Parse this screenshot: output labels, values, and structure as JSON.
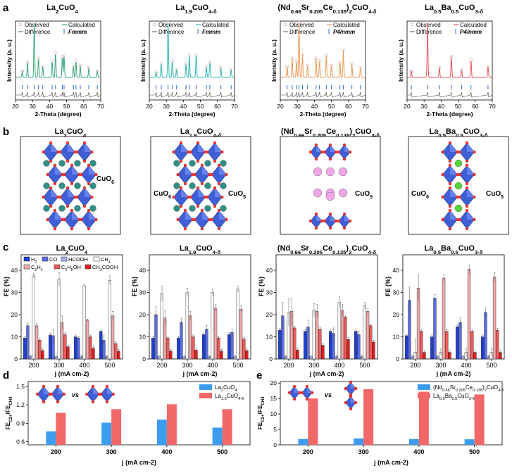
{
  "panel_labels": [
    "a",
    "b",
    "c",
    "d",
    "e"
  ],
  "materials": [
    {
      "base": "La",
      "sub1": "2",
      "mid": "CuO",
      "sub2": "4"
    },
    {
      "base": "La",
      "sub1": "1.9",
      "mid": "CuO",
      "sub2": "4-δ"
    },
    {
      "base": "(Nd",
      "sub1": "0.66",
      "mid": "Sr",
      "sub2": "0.205",
      "mid2": "Ce",
      "sub3": "0.135",
      "mid3": ")",
      "sub4": "2",
      "mid4": "CuO",
      "sub5": "4-δ"
    },
    {
      "base": "La",
      "sub1": "0.5",
      "mid": "Ba",
      "sub2": "0.5",
      "mid2": "CuO",
      "sub3": "3-δ"
    }
  ],
  "xrd": {
    "xlabel": "2-Theta (degree)",
    "ylabel": "Intensity (a. u.)",
    "xticks": [
      "20",
      "30",
      "40",
      "50",
      "60",
      "70"
    ],
    "legend": {
      "observed": "Observed",
      "calculated": "Calculated",
      "difference": "Difference"
    },
    "space_groups": [
      "Fmmm",
      "Fmmm",
      "P4/nmm",
      "P4/nmm"
    ],
    "colors": [
      "#3aa67a",
      "#2fb3b5",
      "#e89a55",
      "#e0565a"
    ],
    "peaks": [
      [
        [
          24,
          0.12
        ],
        [
          27,
          0.28
        ],
        [
          31,
          1.0
        ],
        [
          33.5,
          0.35
        ],
        [
          36,
          0.2
        ],
        [
          41.5,
          0.3
        ],
        [
          43.5,
          0.45
        ],
        [
          47.5,
          0.38
        ],
        [
          48.5,
          0.4
        ],
        [
          54,
          0.2
        ],
        [
          55.5,
          0.3
        ],
        [
          58,
          0.22
        ],
        [
          63,
          0.18
        ],
        [
          68,
          0.12
        ]
      ],
      [
        [
          24,
          0.1
        ],
        [
          27,
          0.25
        ],
        [
          31,
          1.0
        ],
        [
          33.5,
          0.3
        ],
        [
          36,
          0.15
        ],
        [
          41.5,
          0.25
        ],
        [
          43.5,
          0.4
        ],
        [
          47.5,
          0.42
        ],
        [
          53.5,
          0.2
        ],
        [
          55.5,
          0.28
        ],
        [
          62,
          0.18
        ],
        [
          68,
          0.15
        ]
      ],
      [
        [
          24,
          0.2
        ],
        [
          27,
          0.35
        ],
        [
          29.5,
          0.3
        ],
        [
          31,
          1.0
        ],
        [
          33,
          0.42
        ],
        [
          36,
          0.22
        ],
        [
          41,
          0.35
        ],
        [
          43,
          0.3
        ],
        [
          47,
          0.4
        ],
        [
          50,
          0.22
        ],
        [
          55,
          0.28
        ],
        [
          57,
          0.5
        ],
        [
          62,
          0.25
        ],
        [
          67,
          0.18
        ]
      ],
      [
        [
          22.5,
          0.12
        ],
        [
          32,
          1.0
        ],
        [
          39,
          0.18
        ],
        [
          46,
          0.38
        ],
        [
          52,
          0.14
        ],
        [
          57.5,
          0.32
        ],
        [
          67.5,
          0.2
        ]
      ]
    ]
  },
  "structures": {
    "cuo6": "CuO",
    "cuo6_sub": "6",
    "cuo5": "CuO",
    "cuo5_sub": "5"
  },
  "chart_data": [
    {
      "type": "bar",
      "panel": "c",
      "title": "La2CuO4",
      "xlabel": "j (mA cm-2)",
      "ylabel": "FE (%)",
      "categories": [
        "200",
        "300",
        "400",
        "500"
      ],
      "ylim": [
        0,
        47
      ],
      "yticks": [
        0,
        10,
        20,
        30,
        40
      ],
      "series": [
        {
          "name": "H2",
          "values": [
            9.5,
            10.8,
            10,
            12.5
          ]
        },
        {
          "name": "CO",
          "values": [
            15,
            10.5,
            9.5,
            8.5
          ]
        },
        {
          "name": "HCOOH",
          "values": [
            1.0,
            1.0,
            1.0,
            1.0
          ]
        },
        {
          "name": "CH4",
          "values": [
            37.5,
            36,
            33,
            35.5
          ]
        },
        {
          "name": "C2H4",
          "values": [
            15,
            16.5,
            17.5,
            19.5
          ]
        },
        {
          "name": "C2H5OH",
          "values": [
            8.5,
            11,
            10,
            7
          ]
        },
        {
          "name": "CH3COOH",
          "values": [
            3.8,
            5.5,
            4.8,
            3.5
          ]
        }
      ],
      "errors": [
        1.0,
        3.0,
        0.5,
        2.0
      ]
    },
    {
      "type": "bar",
      "panel": "c",
      "title": "La1.9CuO4-δ",
      "xlabel": "j (mA cm-2)",
      "ylabel": "FE (%)",
      "categories": [
        "200",
        "300",
        "400",
        "500"
      ],
      "ylim": [
        0,
        47
      ],
      "yticks": [
        0,
        10,
        20,
        30,
        40
      ],
      "series": [
        {
          "name": "H2",
          "values": [
            9.5,
            9.5,
            11,
            11
          ]
        },
        {
          "name": "CO",
          "values": [
            20,
            16.5,
            13.5,
            12
          ]
        },
        {
          "name": "HCOOH",
          "values": [
            1.0,
            1.0,
            1.0,
            1.0
          ]
        },
        {
          "name": "CH4",
          "values": [
            29.5,
            30,
            30,
            31.5
          ]
        },
        {
          "name": "C2H4",
          "values": [
            18.5,
            19.5,
            23,
            22.5
          ]
        },
        {
          "name": "C2H5OH",
          "values": [
            9.5,
            10,
            9.5,
            9
          ]
        },
        {
          "name": "CH3COOH",
          "values": [
            3.5,
            4,
            3.5,
            3.8
          ]
        }
      ],
      "errors": [
        3.5,
        2.0,
        1.5,
        1.5
      ]
    },
    {
      "type": "bar",
      "panel": "c",
      "title": "(Nd0.66Sr0.205Ce0.135)2CuO4-δ",
      "xlabel": "j (mA cm-2)",
      "ylabel": "FE (%)",
      "categories": [
        "200",
        "300",
        "400",
        "500"
      ],
      "ylim": [
        0,
        47
      ],
      "yticks": [
        0,
        10,
        20,
        30,
        40
      ],
      "series": [
        {
          "name": "H2",
          "values": [
            13,
            12.5,
            12.5,
            12.5
          ]
        },
        {
          "name": "CO",
          "values": [
            19.5,
            14.5,
            11.5,
            11
          ]
        },
        {
          "name": "HCOOH",
          "values": [
            1.0,
            1.0,
            1.0,
            1.0
          ]
        },
        {
          "name": "CH4",
          "values": [
            21,
            22,
            25.5,
            24
          ]
        },
        {
          "name": "C2H4",
          "values": [
            21.5,
            21.5,
            22,
            21.5
          ]
        },
        {
          "name": "C2H5OH",
          "values": [
            14,
            13.5,
            19,
            15
          ]
        },
        {
          "name": "CH3COOH",
          "values": [
            4,
            6.2,
            8.8,
            7.6
          ]
        }
      ],
      "errors": [
        6.0,
        3.0,
        2.5,
        1.5
      ]
    },
    {
      "type": "bar",
      "panel": "c",
      "title": "La0.5Ba0.5CuO3-δ",
      "xlabel": "j (mA cm-2)",
      "ylabel": "FE (%)",
      "categories": [
        "200",
        "300",
        "400",
        "500"
      ],
      "ylim": [
        0,
        47
      ],
      "yticks": [
        0,
        10,
        20,
        30,
        40
      ],
      "series": [
        {
          "name": "H2",
          "values": [
            10.5,
            10,
            14.5,
            10
          ]
        },
        {
          "name": "CO",
          "values": [
            26.5,
            27.5,
            16.5,
            21
          ]
        },
        {
          "name": "HCOOH",
          "values": [
            1.0,
            1.0,
            1.0,
            1.0
          ]
        },
        {
          "name": "CH4",
          "values": [
            3,
            3,
            3,
            3
          ]
        },
        {
          "name": "C2H4",
          "values": [
            32,
            36.5,
            40.5,
            37
          ]
        },
        {
          "name": "C2H5OH",
          "values": [
            12.5,
            12.5,
            12.5,
            13
          ]
        },
        {
          "name": "CH3COOH",
          "values": [
            3,
            3,
            3,
            3
          ]
        }
      ],
      "errors": [
        6.0,
        1.5,
        2.0,
        2.0
      ]
    },
    {
      "type": "bar",
      "panel": "d",
      "xlabel": "j (mA cm-2)",
      "ylabel": "FE C2+ / FE CH4",
      "categories": [
        "200",
        "300",
        "400",
        "500"
      ],
      "ylim": [
        0.55,
        1.58
      ],
      "yticks": [
        0.6,
        0.9,
        1.2,
        1.5
      ],
      "ytick_labels": [
        "0.6",
        "0.9",
        "1.2",
        "1.5"
      ],
      "series": [
        {
          "name": "La2CuO4",
          "values": [
            0.77,
            0.91,
            0.96,
            0.83
          ]
        },
        {
          "name": "La1.9CuO4-δ",
          "values": [
            1.07,
            1.13,
            1.21,
            1.13
          ]
        }
      ]
    },
    {
      "type": "bar",
      "panel": "e",
      "xlabel": "j (mA cm-2)",
      "ylabel": "FE C2+ / FE CH4",
      "categories": [
        "200",
        "300",
        "400",
        "500"
      ],
      "ylim": [
        0,
        20.5
      ],
      "yticks": [
        0,
        5,
        10,
        15,
        20
      ],
      "ytick_labels": [
        "0",
        "5",
        "10",
        "15",
        "20"
      ],
      "series": [
        {
          "name": "(Nd0.66Sr0.205Ce0.135)2CuO4-δ",
          "values": [
            1.9,
            2.1,
            1.9,
            1.8
          ]
        },
        {
          "name": "La0.5Ba0.5CuO3-δ",
          "values": [
            15,
            18,
            17.2,
            16.3
          ]
        }
      ]
    }
  ],
  "legend_c": [
    "H",
    "CO",
    "HCOOH",
    "CH",
    "C",
    "C",
    "CH"
  ],
  "legend_c_subs": [
    "2",
    "",
    "",
    "4",
    "2",
    "2",
    "3"
  ],
  "legend_c_tails": [
    "",
    "",
    "",
    "",
    "H",
    "H",
    "COOH"
  ],
  "legend_c_subs2": [
    "",
    "",
    "",
    "",
    "4",
    "5",
    ""
  ],
  "legend_c_tails2": [
    "",
    "",
    "",
    "",
    "",
    "OH",
    ""
  ],
  "vs_label": "vs",
  "c_colors": {
    "H2": "#1f3fd0",
    "CO": "#5b6ee6",
    "HCOOH": "#aab4f2",
    "CH4": "#ffffff",
    "C2H4": "#f3aaaa",
    "C2H5OH": "#ef5b5b",
    "CH3COOH": "#e21c1c"
  },
  "de_colors": {
    "blue": "#3b9cf0",
    "red": "#f26768"
  }
}
